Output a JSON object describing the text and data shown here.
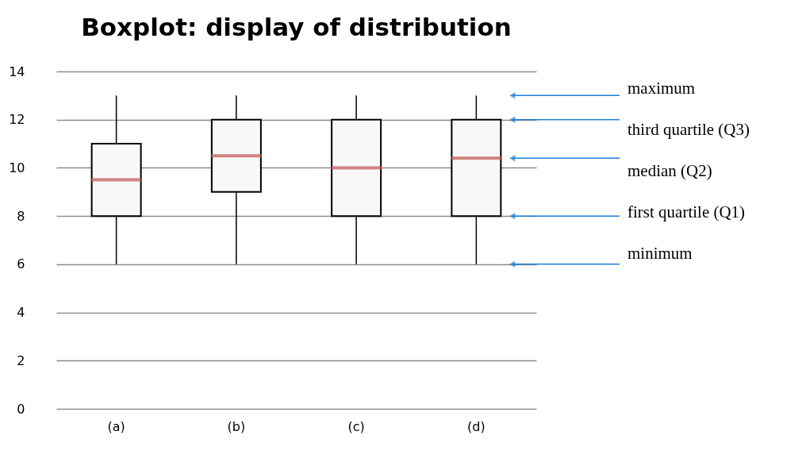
{
  "chart_data": {
    "type": "box",
    "title": "Boxplot: display of distribution",
    "categories": [
      "(a)",
      "(b)",
      "(c)",
      "(d)"
    ],
    "boxes": [
      {
        "low": 6,
        "q1": 8,
        "median": 9.5,
        "q3": 11,
        "high": 13
      },
      {
        "low": 6,
        "q1": 9,
        "median": 10.5,
        "q3": 12,
        "high": 13
      },
      {
        "low": 6,
        "q1": 8,
        "median": 10,
        "q3": 12,
        "high": 13
      },
      {
        "low": 6,
        "q1": 8,
        "median": 10.4,
        "q3": 12,
        "high": 13
      }
    ],
    "ylim": [
      0,
      14
    ],
    "yticks": [
      0,
      2,
      4,
      6,
      8,
      10,
      12,
      14
    ],
    "grid": "y",
    "annotations": [
      "maximum",
      "third quartile (Q3)",
      "median (Q2)",
      "first quartile (Q1)",
      "minimum"
    ]
  }
}
